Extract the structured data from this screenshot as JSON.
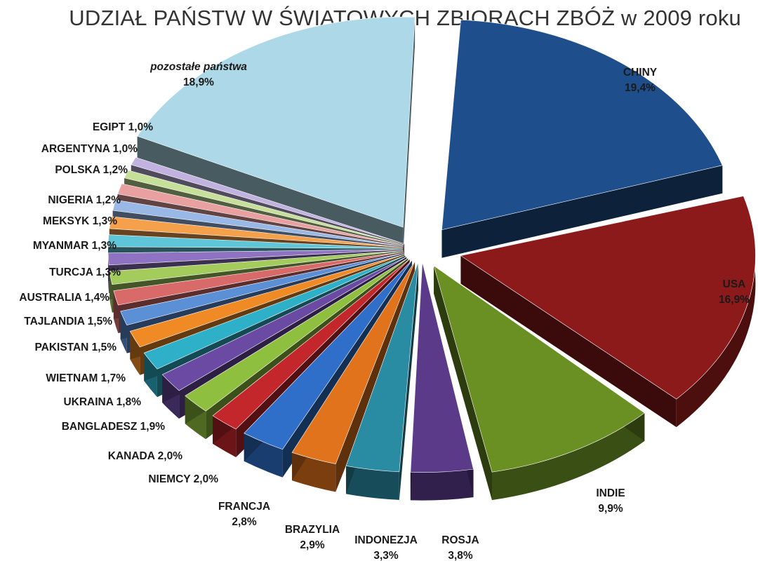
{
  "chart_data": {
    "type": "pie",
    "title": "UDZIAŁ PAŃSTW W ŚWIATOWYCH ZBIORACH ZBÓŻ w 2009 roku",
    "slices": [
      {
        "name": "CHINY",
        "value": 19.4,
        "value_label": "19,4%",
        "color": "#1f4e8c"
      },
      {
        "name": "USA",
        "value": 16.9,
        "value_label": "16,9%",
        "color": "#8c1a1a"
      },
      {
        "name": "INDIE",
        "value": 9.9,
        "value_label": "9,9%",
        "color": "#6a8f23"
      },
      {
        "name": "ROSJA",
        "value": 3.8,
        "value_label": "3,8%",
        "color": "#5b3a8a"
      },
      {
        "name": "INDONEZJA",
        "value": 3.3,
        "value_label": "3,3%",
        "color": "#2a8ca3"
      },
      {
        "name": "BRAZYLIA",
        "value": 2.9,
        "value_label": "2,9%",
        "color": "#e0731c"
      },
      {
        "name": "FRANCJA",
        "value": 2.8,
        "value_label": "2,8%",
        "color": "#2f6fc9"
      },
      {
        "name": "NIEMCY",
        "value": 2.0,
        "value_label": "2,0%",
        "color": "#c4272b"
      },
      {
        "name": "KANADA",
        "value": 2.0,
        "value_label": "2,0%",
        "color": "#8fbf3f"
      },
      {
        "name": "BANGLADESZ",
        "value": 1.9,
        "value_label": "1,9%",
        "color": "#6b4aa3"
      },
      {
        "name": "UKRAINA",
        "value": 1.8,
        "value_label": "1,8%",
        "color": "#2fb0c9"
      },
      {
        "name": "WIETNAM",
        "value": 1.7,
        "value_label": "1,7%",
        "color": "#f08a24"
      },
      {
        "name": "PAKISTAN",
        "value": 1.5,
        "value_label": "1,5%",
        "color": "#5b8fd6"
      },
      {
        "name": "TAJLANDIA",
        "value": 1.5,
        "value_label": "1,5%",
        "color": "#d96a6a"
      },
      {
        "name": "AUSTRALIA",
        "value": 1.4,
        "value_label": "1,4%",
        "color": "#a3cc5c"
      },
      {
        "name": "TURCJA",
        "value": 1.3,
        "value_label": "1,3%",
        "color": "#8f72c2"
      },
      {
        "name": "MYANMAR",
        "value": 1.3,
        "value_label": "1,3%",
        "color": "#5fc6d9"
      },
      {
        "name": "MEKSYK",
        "value": 1.3,
        "value_label": "1,3%",
        "color": "#f5a04a"
      },
      {
        "name": "NIGERIA",
        "value": 1.2,
        "value_label": "1,2%",
        "color": "#9ab8e6"
      },
      {
        "name": "POLSKA",
        "value": 1.2,
        "value_label": "1,2%",
        "color": "#e8a0a0"
      },
      {
        "name": "ARGENTYNA",
        "value": 1.0,
        "value_label": "1,0%",
        "color": "#c6e09a"
      },
      {
        "name": "EGIPT",
        "value": 1.0,
        "value_label": "1,0%",
        "color": "#c2b2e0"
      },
      {
        "name": "pozostałe państwa",
        "value": 18.9,
        "value_label": "18,9%",
        "color": "#acd8e8"
      }
    ]
  }
}
